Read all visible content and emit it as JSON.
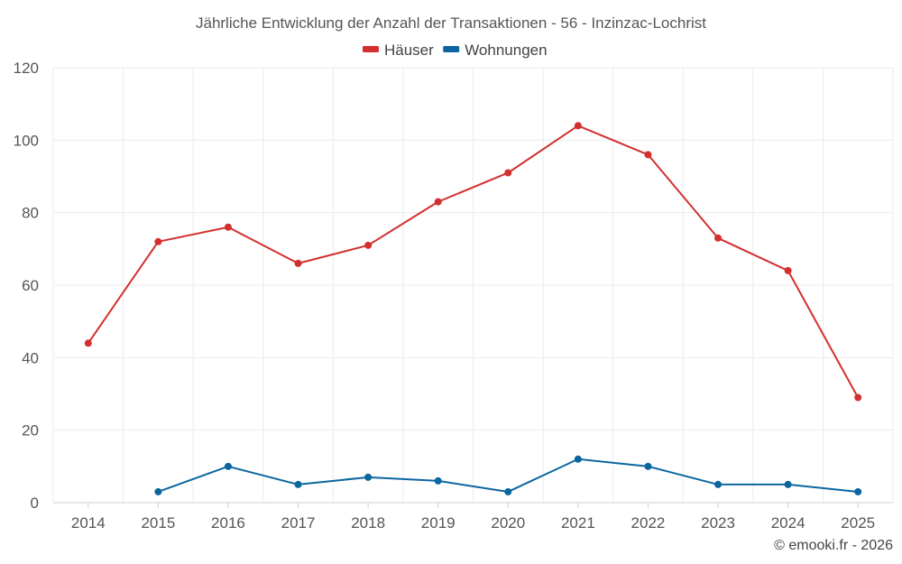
{
  "chart_data": {
    "type": "line",
    "title": "Jährliche Entwicklung der Anzahl der Transaktionen - 56 - Inzinzac-Lochrist",
    "xlabel": "",
    "ylabel": "",
    "categories": [
      "2014",
      "2015",
      "2016",
      "2017",
      "2018",
      "2019",
      "2020",
      "2021",
      "2022",
      "2023",
      "2024",
      "2025"
    ],
    "ylim": [
      0,
      120
    ],
    "yticks": [
      0,
      20,
      40,
      60,
      80,
      100,
      120
    ],
    "grid": true,
    "legend_position": "top-center",
    "series": [
      {
        "name": "Häuser",
        "color": "#d32f2f",
        "values": [
          44,
          72,
          76,
          66,
          71,
          83,
          91,
          104,
          96,
          73,
          64,
          29
        ]
      },
      {
        "name": "Wohnungen",
        "color": "#0b66a0",
        "values": [
          null,
          3,
          10,
          5,
          7,
          6,
          3,
          12,
          10,
          5,
          5,
          3
        ]
      }
    ]
  },
  "credit": "© emooki.fr - 2026"
}
